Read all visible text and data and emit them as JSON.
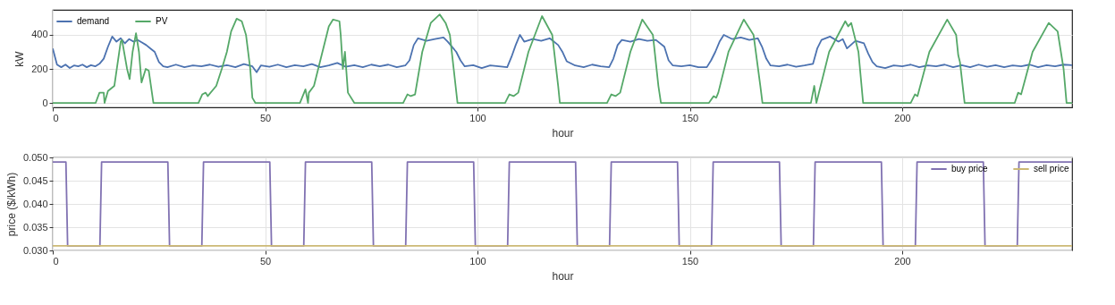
{
  "chart_data": [
    {
      "type": "line",
      "xlabel": "hour",
      "ylabel": "kW",
      "xlim": [
        0,
        240
      ],
      "xticks": [
        0,
        50,
        100,
        150,
        200
      ],
      "ylim": [
        -26,
        547
      ],
      "yticks": [
        0,
        200,
        400
      ],
      "grid": true,
      "legend": "top left",
      "line_style": "solid",
      "series": [
        {
          "name": "demand",
          "color": "#4c72b0",
          "x": [
            0,
            1,
            2,
            3,
            4,
            5,
            6,
            7,
            8,
            9,
            10,
            11,
            12,
            13,
            14,
            15,
            16,
            17,
            18,
            19,
            20,
            21,
            22,
            23,
            24,
            25,
            26,
            27,
            29,
            31,
            33,
            35,
            37,
            39,
            41,
            43,
            45,
            47,
            48,
            49,
            51,
            53,
            55,
            57,
            59,
            61,
            63,
            65,
            67,
            69,
            71,
            73,
            75,
            77,
            79,
            81,
            83,
            84,
            85,
            86,
            88,
            90,
            92,
            93,
            95,
            96,
            97,
            99,
            101,
            103,
            105,
            107,
            108,
            109,
            110,
            111,
            113,
            115,
            117,
            119,
            120,
            121,
            123,
            125,
            127,
            129,
            131,
            132,
            133,
            134,
            136,
            138,
            140,
            142,
            144,
            145,
            146,
            148,
            150,
            152,
            154,
            155,
            156,
            157,
            158,
            160,
            162,
            164,
            166,
            167,
            168,
            169,
            171,
            173,
            175,
            177,
            179,
            180,
            181,
            183,
            185,
            186,
            187,
            189,
            191,
            192,
            193,
            194,
            196,
            198,
            200,
            202,
            204,
            206,
            208,
            210,
            212,
            214,
            216,
            218,
            220,
            222,
            224,
            226,
            228,
            230,
            232,
            234,
            236,
            238,
            240
          ],
          "values": [
            320,
            225,
            210,
            225,
            205,
            220,
            215,
            225,
            210,
            222,
            215,
            230,
            260,
            330,
            390,
            360,
            380,
            350,
            375,
            360,
            370,
            355,
            340,
            320,
            300,
            240,
            215,
            210,
            225,
            210,
            220,
            215,
            225,
            212,
            222,
            210,
            228,
            215,
            180,
            220,
            212,
            225,
            210,
            222,
            215,
            228,
            210,
            220,
            235,
            212,
            222,
            210,
            225,
            215,
            225,
            210,
            220,
            250,
            340,
            380,
            365,
            375,
            385,
            360,
            300,
            250,
            215,
            222,
            205,
            220,
            215,
            210,
            270,
            340,
            400,
            360,
            375,
            365,
            380,
            340,
            300,
            245,
            220,
            210,
            225,
            215,
            210,
            260,
            340,
            370,
            360,
            375,
            365,
            370,
            330,
            250,
            220,
            215,
            222,
            210,
            210,
            250,
            300,
            360,
            400,
            375,
            385,
            370,
            380,
            330,
            260,
            220,
            215,
            225,
            212,
            220,
            230,
            320,
            370,
            390,
            360,
            375,
            320,
            365,
            350,
            290,
            240,
            215,
            205,
            220,
            215,
            225,
            210,
            220,
            215,
            225,
            210,
            222,
            210,
            225,
            212,
            222,
            210,
            220,
            215,
            225,
            210,
            222,
            215,
            225,
            222
          ]
        },
        {
          "name": "PV",
          "color": "#55a868",
          "x": [
            0,
            10.1,
            11,
            12,
            12.2,
            13,
            14.5,
            16,
            16.3,
            17.5,
            18.1,
            18.8,
            19.6,
            20.3,
            20.9,
            21.9,
            22.6,
            23.7,
            34.3,
            35.2,
            36,
            36.5,
            38.5,
            39.8,
            41,
            42,
            43.3,
            44.5,
            45.5,
            46.5,
            47,
            47.7,
            58.2,
            59.5,
            60.1,
            60.3,
            61.5,
            63.5,
            65,
            66,
            67.5,
            67.8,
            68.3,
            68.8,
            69.5,
            71,
            82.5,
            83.5,
            84.3,
            85.3,
            87,
            89,
            91.1,
            92.5,
            93.5,
            94.4,
            95.3,
            106.5,
            107.5,
            108.5,
            109.6,
            112,
            115.2,
            117.6,
            119,
            119.4,
            130.5,
            131.5,
            132.5,
            133.6,
            136,
            138.8,
            141.3,
            142.6,
            143.2,
            154.5,
            155.6,
            156.2,
            156.7,
            159.1,
            162.7,
            165,
            166.6,
            167.1,
            178.5,
            179.3,
            179.8,
            182.8,
            186.6,
            187.3,
            188,
            189.7,
            190.8,
            202,
            203,
            203.6,
            206.4,
            210.6,
            212.7,
            213.2,
            213.6,
            214.7,
            226.5,
            227.3,
            228,
            230.7,
            234.5,
            236.6,
            238,
            238.7,
            240
          ],
          "values": [
            0,
            0,
            60,
            60,
            0,
            70,
            100,
            360,
            370,
            200,
            140,
            300,
            410,
            300,
            120,
            200,
            190,
            0,
            0,
            50,
            60,
            40,
            100,
            200,
            300,
            420,
            495,
            480,
            400,
            200,
            30,
            0,
            0,
            80,
            0,
            60,
            100,
            300,
            450,
            490,
            480,
            400,
            200,
            300,
            60,
            0,
            0,
            50,
            40,
            50,
            300,
            470,
            520,
            470,
            400,
            200,
            0,
            0,
            50,
            40,
            60,
            300,
            510,
            400,
            100,
            0,
            0,
            50,
            40,
            60,
            300,
            490,
            400,
            100,
            0,
            0,
            40,
            30,
            60,
            300,
            490,
            400,
            100,
            0,
            0,
            100,
            0,
            300,
            480,
            450,
            470,
            300,
            0,
            0,
            50,
            40,
            300,
            490,
            400,
            280,
            240,
            0,
            0,
            60,
            50,
            300,
            470,
            420,
            200,
            0,
            0
          ]
        }
      ]
    },
    {
      "type": "line",
      "xlabel": "hour",
      "ylabel": "price ($/kWh)",
      "xlim": [
        0,
        240
      ],
      "xticks": [
        0,
        50,
        100,
        150,
        200
      ],
      "ylim": [
        0.03,
        0.05
      ],
      "yticks": [
        {
          "value": 0.03,
          "label": "0.030"
        },
        {
          "value": 0.035,
          "label": "0.035"
        },
        {
          "value": 0.04,
          "label": "0.040"
        },
        {
          "value": 0.045,
          "label": "0.045"
        },
        {
          "value": 0.05,
          "label": "0.050"
        }
      ],
      "grid": true,
      "legend": "top right",
      "line_style": "solid",
      "series": [
        {
          "name": "buy price",
          "color": "#8172b2",
          "x": [
            0,
            3.1,
            3.5,
            11.1,
            11.5,
            27.1,
            27.5,
            35.1,
            35.5,
            51.1,
            51.5,
            59.1,
            59.5,
            75.1,
            75.5,
            83.1,
            83.5,
            99.1,
            99.5,
            107.1,
            107.5,
            123.1,
            123.5,
            131.1,
            131.5,
            147.1,
            147.5,
            155.1,
            155.5,
            171.1,
            171.5,
            179.1,
            179.5,
            195.1,
            195.5,
            203.1,
            203.5,
            219.1,
            219.5,
            227.1,
            227.5,
            240
          ],
          "values": [
            0.049,
            0.049,
            0.031,
            0.031,
            0.049,
            0.049,
            0.031,
            0.031,
            0.049,
            0.049,
            0.031,
            0.031,
            0.049,
            0.049,
            0.031,
            0.031,
            0.049,
            0.049,
            0.031,
            0.031,
            0.049,
            0.049,
            0.031,
            0.031,
            0.049,
            0.049,
            0.031,
            0.031,
            0.049,
            0.049,
            0.031,
            0.031,
            0.049,
            0.049,
            0.031,
            0.031,
            0.049,
            0.049,
            0.031,
            0.031,
            0.049,
            0.049
          ]
        },
        {
          "name": "sell price",
          "color": "#ccb974",
          "x": [
            0,
            240
          ],
          "values": [
            0.031,
            0.031
          ]
        }
      ]
    }
  ]
}
